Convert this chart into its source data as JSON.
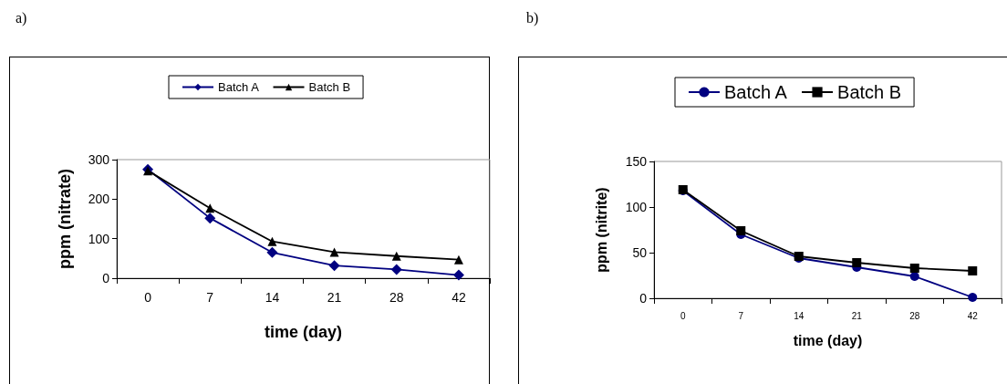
{
  "chart_data": [
    {
      "type": "line",
      "title": "a)",
      "xlabel": "time (day)",
      "ylabel": "ppm (nitrate)",
      "categories": [
        "0",
        "7",
        "14",
        "21",
        "28",
        "42"
      ],
      "series": [
        {
          "name": "Batch A",
          "color": "#000080",
          "marker": "diamond",
          "values": [
            275,
            152,
            65,
            32,
            22,
            8
          ]
        },
        {
          "name": "Batch B",
          "color": "#000000",
          "marker": "triangle",
          "values": [
            272,
            177,
            93,
            66,
            56,
            47
          ]
        }
      ],
      "ylim": [
        0,
        300
      ],
      "yticks": [
        0,
        100,
        200,
        300
      ],
      "grid": false,
      "legend": "top"
    },
    {
      "type": "line",
      "title": "b)",
      "xlabel": "time (day)",
      "ylabel": "ppm (nitrite)",
      "categories": [
        "0",
        "7",
        "14",
        "21",
        "28",
        "42"
      ],
      "series": [
        {
          "name": "Batch A",
          "color": "#000080",
          "marker": "circle",
          "values": [
            118,
            70,
            44,
            34,
            24,
            1
          ]
        },
        {
          "name": "Batch B",
          "color": "#000000",
          "marker": "square",
          "values": [
            119,
            74,
            46,
            39,
            33,
            30
          ]
        }
      ],
      "ylim": [
        0,
        150
      ],
      "yticks": [
        0,
        50,
        100,
        150
      ],
      "grid": false,
      "legend": "top"
    }
  ]
}
